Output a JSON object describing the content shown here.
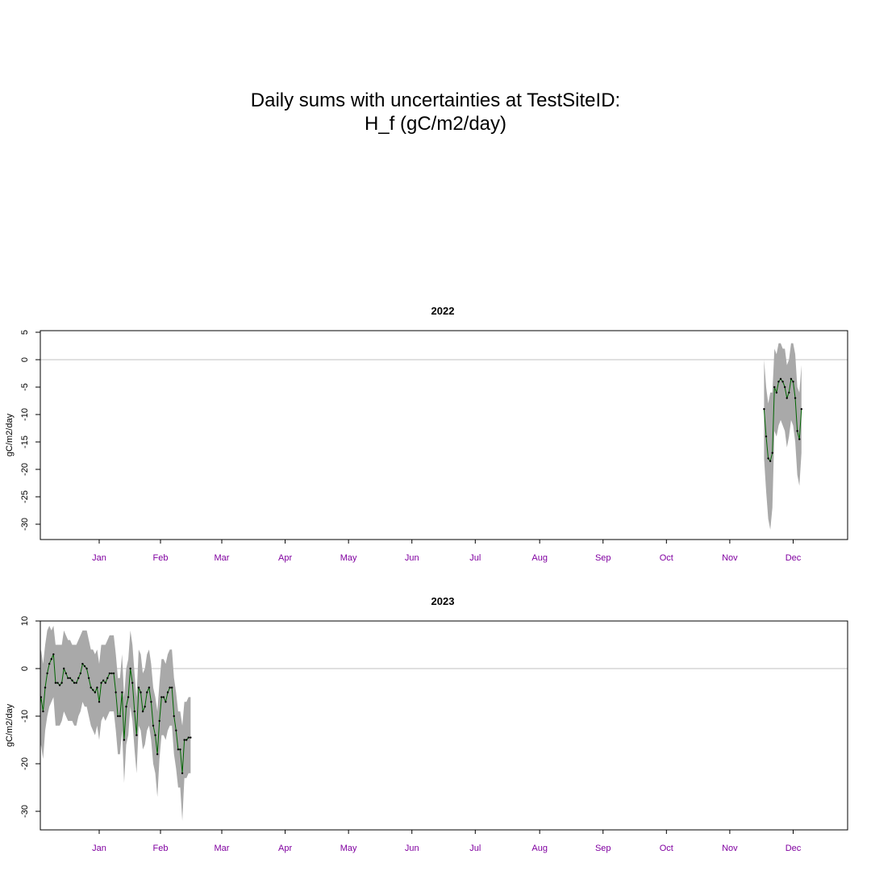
{
  "title": {
    "line1": "Daily sums with uncertainties at TestSiteID:",
    "line2": "H_f (gC/m2/day)"
  },
  "colors": {
    "band": "#a9a9a9",
    "line": "#006400",
    "month_labels": "#8000a0",
    "zero_line": "#c0c0c0"
  },
  "chart_data": [
    {
      "type": "line",
      "title": "2022",
      "ylabel": "gC/m2/day",
      "xlabel": "",
      "ylim": [
        -32,
        5
      ],
      "yticks": [
        5,
        0,
        -5,
        -10,
        -15,
        -20,
        -25,
        -30
      ],
      "month_labels": [
        "Jan",
        "Feb",
        "Mar",
        "Apr",
        "May",
        "Jun",
        "Jul",
        "Aug",
        "Sep",
        "Oct",
        "Nov",
        "Dec"
      ],
      "zero_line": true,
      "x_day_of_year": [
        336,
        337,
        338,
        339,
        340,
        341,
        342,
        343,
        344,
        345,
        346,
        347,
        348,
        349,
        350,
        351,
        352,
        353,
        354,
        355,
        356
      ],
      "y": [
        -9,
        -14,
        -18,
        -18.5,
        -17,
        -5,
        -6,
        -4,
        -3.5,
        -4,
        -5,
        -7,
        -6,
        -3.5,
        -4,
        -7,
        -13,
        -14.5,
        -9
      ],
      "x": [
        336,
        337,
        338,
        339,
        340,
        341,
        342,
        343,
        344,
        345,
        346,
        347,
        348,
        349,
        350,
        351,
        352,
        353,
        354
      ],
      "lower": [
        -18,
        -24,
        -29,
        -31,
        -27,
        -13,
        -14,
        -12,
        -11,
        -12,
        -13,
        -16,
        -14,
        -11,
        -12,
        -15,
        -21,
        -23,
        -17
      ],
      "upper": [
        0,
        -5,
        -8,
        -6,
        -6,
        2,
        1,
        3,
        3,
        2,
        2,
        -1,
        0,
        3,
        3,
        1,
        -5,
        -6,
        -1
      ]
    },
    {
      "type": "line",
      "title": "2023",
      "ylabel": "gC/m2/day",
      "xlabel": "",
      "ylim": [
        -34,
        10
      ],
      "yticks": [
        10,
        0,
        -10,
        -20,
        -30
      ],
      "month_labels": [
        "Jan",
        "Feb",
        "Mar",
        "Apr",
        "May",
        "Jun",
        "Jul",
        "Aug",
        "Sep",
        "Oct",
        "Nov",
        "Dec"
      ],
      "zero_line": true,
      "x": [
        -14,
        -13,
        -12,
        -11,
        -10,
        -9,
        -8,
        -7,
        -6,
        -5,
        -4,
        -3,
        -2,
        -1,
        0,
        1,
        2,
        3,
        4,
        5,
        6,
        7,
        8,
        9,
        10,
        11,
        12,
        13,
        14,
        15,
        16,
        17,
        18,
        19,
        20,
        21,
        22,
        23,
        24,
        25,
        26,
        27,
        28,
        29,
        30,
        31,
        32,
        33,
        34,
        35,
        36,
        37,
        38,
        39,
        40,
        41,
        42,
        43,
        44,
        45,
        46,
        47,
        48,
        49,
        50,
        51,
        52,
        53,
        54,
        55,
        56,
        57,
        58,
        59,
        60
      ],
      "y": [
        -9,
        -10,
        -6,
        -9,
        -4,
        -1,
        1,
        2,
        3,
        -3,
        -3,
        -3.5,
        -3,
        0,
        -1,
        -2,
        -2,
        -2.5,
        -3,
        -3,
        -2,
        -1,
        1,
        0.5,
        0,
        -2,
        -4,
        -4.5,
        -5,
        -4,
        -7,
        -3,
        -2.5,
        -3,
        -2,
        -1,
        -1,
        -1,
        -5,
        -10,
        -10,
        -5,
        -15,
        -8,
        -6,
        0,
        -3,
        -9,
        -14,
        -4,
        -5,
        -9,
        -8,
        -5,
        -4,
        -7,
        -12,
        -14,
        -18,
        -11,
        -6,
        -6,
        -7,
        -5,
        -4,
        -4,
        -10,
        -13,
        -17,
        -17,
        -22,
        -15,
        -15,
        -14.5,
        -14.5
      ],
      "lower": [
        -19,
        -20,
        -16,
        -19,
        -13,
        -10,
        -8,
        -7,
        -6,
        -12,
        -12,
        -12,
        -11,
        -9,
        -10,
        -11,
        -11,
        -11,
        -12,
        -12,
        -10,
        -9,
        -7,
        -8,
        -8,
        -10,
        -12,
        -13,
        -14,
        -12,
        -15,
        -11,
        -10,
        -11,
        -10,
        -9,
        -9,
        -9,
        -13,
        -18,
        -18,
        -13,
        -24,
        -16,
        -14,
        -8,
        -11,
        -17,
        -22,
        -12,
        -13,
        -17,
        -16,
        -13,
        -12,
        -15,
        -20,
        -22,
        -27,
        -19,
        -14,
        -14,
        -15,
        -13,
        -12,
        -12,
        -18,
        -21,
        -25,
        -25,
        -32,
        -23,
        -23,
        -22,
        -22
      ],
      "upper": [
        1,
        0,
        4,
        1,
        5,
        8,
        9,
        8,
        9,
        5,
        5,
        5,
        5,
        8,
        7,
        6,
        6,
        5,
        5,
        5,
        6,
        7,
        8,
        8,
        8,
        6,
        4,
        4,
        3,
        4,
        1,
        5,
        5,
        5,
        6,
        7,
        7,
        7,
        3,
        -2,
        -2,
        3,
        -6,
        0,
        2,
        8,
        5,
        -1,
        -6,
        4,
        3,
        -1,
        0,
        3,
        4,
        1,
        -4,
        -6,
        -9,
        -3,
        2,
        2,
        1,
        3,
        4,
        4,
        -2,
        -5,
        -9,
        -9,
        -12,
        -7,
        -7,
        -6,
        -6
      ]
    }
  ]
}
